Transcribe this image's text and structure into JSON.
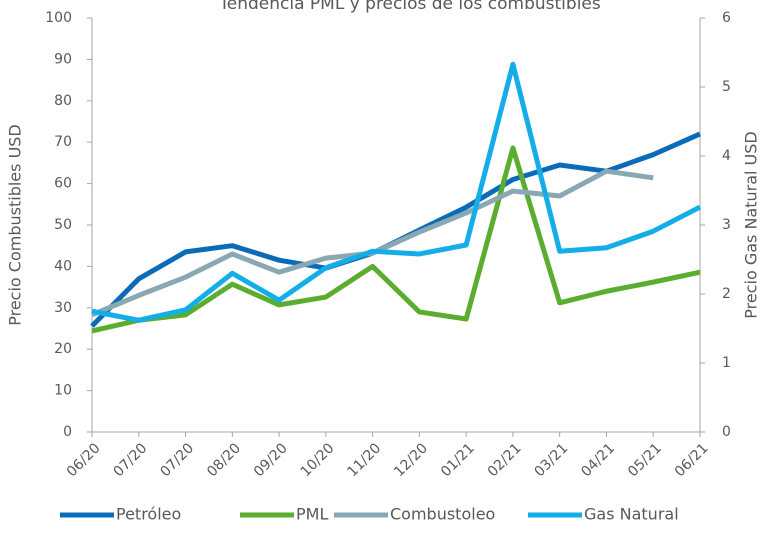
{
  "chart_data": {
    "type": "line",
    "title": "Tendencia PML y precios de los combustibles",
    "y_label": "Precio Combustibles USD",
    "y2_label": "Precio Gas Natural USD",
    "categories": [
      "06/20",
      "07/20",
      "07/20",
      "08/20",
      "09/20",
      "10/20",
      "11/20",
      "12/20",
      "01/21",
      "02/21",
      "03/21",
      "04/21",
      "05/21",
      "06/21"
    ],
    "series": [
      {
        "name": "Petróleo",
        "color": "#0a6cb8",
        "values": [
          25.6,
          37,
          43.5,
          45,
          41.5,
          39.6,
          43.2,
          48.8,
          54.3,
          61,
          64.5,
          63,
          67,
          72
        ]
      },
      {
        "name": "PML",
        "color": "#5aad2e",
        "values": [
          24.4,
          27,
          28.3,
          35.7,
          30.7,
          32.6,
          40,
          29,
          27.3,
          68.6,
          31.2,
          34,
          36.2,
          38.6
        ]
      },
      {
        "name": "Combustoleo",
        "color": "#8aa8b4",
        "values": [
          28.3,
          33,
          37.4,
          43,
          38.6,
          42,
          43.2,
          48.3,
          52.9,
          58.2,
          57,
          63,
          61.4,
          null
        ]
      },
      {
        "name": "Gas Natural",
        "color": "#13aee8",
        "axis": "y2",
        "values": [
          1.75,
          1.62,
          1.77,
          2.3,
          1.91,
          2.38,
          2.62,
          2.58,
          2.71,
          5.33,
          2.62,
          2.67,
          2.91,
          3.26
        ]
      }
    ],
    "ylim": [
      0,
      100
    ],
    "yticks": [
      0,
      10,
      20,
      30,
      40,
      50,
      60,
      70,
      80,
      90,
      100
    ],
    "y2lim": [
      0,
      6
    ],
    "y2ticks": [
      0,
      1,
      2,
      3,
      4,
      5,
      6
    ],
    "legend": "bottom"
  }
}
